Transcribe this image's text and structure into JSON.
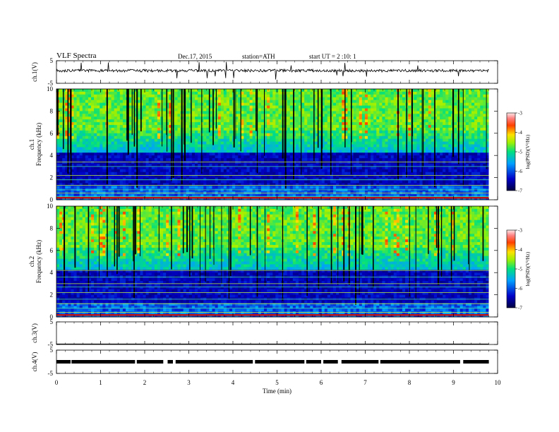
{
  "header": {
    "title": "VLF  Spectra",
    "date": "Dec.17, 2015",
    "station": "station=ATH",
    "start": "start  UT  =   2  :10: 1"
  },
  "chart_data": [
    {
      "type": "line",
      "id": "ch1-waveform",
      "ylabel": "ch.1(V)",
      "yticks": [
        "5",
        "-5"
      ],
      "ylim": [
        -5,
        5
      ],
      "xlim": [
        0,
        10
      ],
      "data_end_min": 9.8
    },
    {
      "type": "heatmap",
      "id": "ch1-spectrogram",
      "ylabel_channel": "ch.1",
      "ylabel": "Frequency  (kHz)",
      "yticks": [
        "0",
        "2",
        "4",
        "6",
        "8",
        "10"
      ],
      "ylim": [
        0,
        10
      ],
      "xlim": [
        0,
        10
      ],
      "colorbar_label": "log(PSD)(V²/Hz)",
      "colorbar_ticks": [
        "-3",
        "-4",
        "-5",
        "-6",
        "-7"
      ],
      "colorbar_range": [
        -7,
        -3
      ]
    },
    {
      "type": "heatmap",
      "id": "ch2-spectrogram",
      "ylabel_channel": "ch.2",
      "ylabel": "Frequency  (kHz)",
      "yticks": [
        "0",
        "2",
        "4",
        "6",
        "8",
        "10"
      ],
      "ylim": [
        0,
        10
      ],
      "xlim": [
        0,
        10
      ],
      "colorbar_label": "log(PSD)(V²/Hz)",
      "colorbar_ticks": [
        "-3",
        "-4",
        "-5",
        "-6",
        "-7"
      ],
      "colorbar_range": [
        -7,
        -3
      ]
    },
    {
      "type": "line",
      "id": "ch3-waveform",
      "ylabel": "ch.3(V)",
      "yticks": [
        "5",
        "-5"
      ],
      "ylim": [
        -5,
        5
      ],
      "xlim": [
        0,
        10
      ]
    },
    {
      "type": "line",
      "id": "ch4-waveform",
      "ylabel": "ch.4(V)",
      "yticks": [
        "5",
        "-5"
      ],
      "ylim": [
        -5,
        5
      ],
      "xlim": [
        0,
        10
      ]
    }
  ],
  "x_axis": {
    "label": "Time  (min)",
    "ticks": [
      "0",
      "1",
      "2",
      "3",
      "4",
      "5",
      "6",
      "7",
      "8",
      "9",
      "10"
    ]
  }
}
